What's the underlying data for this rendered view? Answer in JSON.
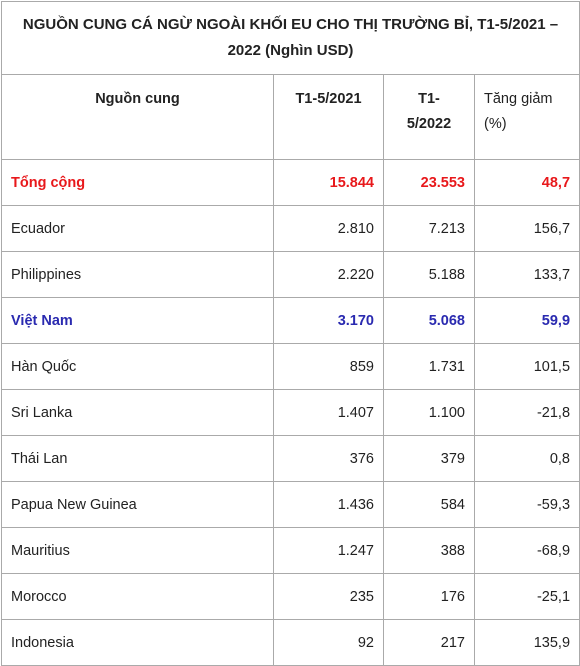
{
  "title": "NGUỒN CUNG CÁ NGỪ NGOÀI KHỐI EU CHO THỊ TRƯỜNG BỈ, T1-5/2021 – 2022 (Nghìn USD)",
  "columns": {
    "source": "Nguồn cung",
    "y2021": "T1-5/2021",
    "y2022_a": "T1-",
    "y2022_b": "5/2022",
    "change_a": "Tăng giảm",
    "change_b": "(%)"
  },
  "rows": [
    {
      "name": "Tổng cộng",
      "v2021": "15.844",
      "v2022": "23.553",
      "change": "48,7",
      "style": "red"
    },
    {
      "name": "Ecuador",
      "v2021": "2.810",
      "v2022": "7.213",
      "change": "156,7",
      "style": ""
    },
    {
      "name": "Philippines",
      "v2021": "2.220",
      "v2022": "5.188",
      "change": "133,7",
      "style": ""
    },
    {
      "name": "Việt Nam",
      "v2021": "3.170",
      "v2022": "5.068",
      "change": "59,9",
      "style": "blue"
    },
    {
      "name": "Hàn Quốc",
      "v2021": "859",
      "v2022": "1.731",
      "change": "101,5",
      "style": ""
    },
    {
      "name": "Sri Lanka",
      "v2021": "1.407",
      "v2022": "1.100",
      "change": "-21,8",
      "style": ""
    },
    {
      "name": "Thái Lan",
      "v2021": "376",
      "v2022": "379",
      "change": "0,8",
      "style": ""
    },
    {
      "name": "Papua New Guinea",
      "v2021": "1.436",
      "v2022": "584",
      "change": "-59,3",
      "style": ""
    },
    {
      "name": "Mauritius",
      "v2021": "1.247",
      "v2022": "388",
      "change": "-68,9",
      "style": ""
    },
    {
      "name": "Morocco",
      "v2021": "235",
      "v2022": "176",
      "change": "-25,1",
      "style": ""
    },
    {
      "name": "Indonesia",
      "v2021": "92",
      "v2022": "217",
      "change": "135,9",
      "style": ""
    }
  ],
  "colors": {
    "highlight_total": "#e8181b",
    "highlight_vietnam": "#2a2ab0",
    "border": "#aaaaaa"
  }
}
